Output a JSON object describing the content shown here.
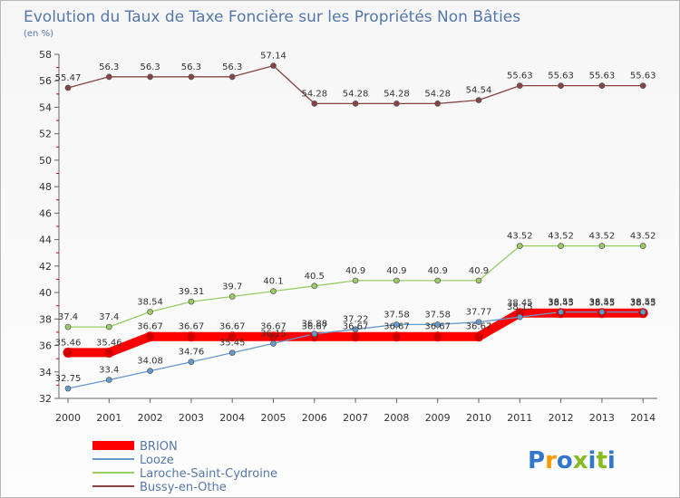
{
  "chart_data": {
    "type": "line",
    "title": "Evolution du Taux de Taxe Foncière sur les Propriétés Non Bâties",
    "subtitle": "(en %)",
    "xlabel": "",
    "ylabel": "",
    "ylim": [
      32,
      58
    ],
    "yticks": [
      "32",
      "34",
      "36",
      "38",
      "40",
      "42",
      "44",
      "46",
      "48",
      "50",
      "52",
      "54",
      "56",
      "58"
    ],
    "categories": [
      "2000",
      "2001",
      "2002",
      "2003",
      "2004",
      "2005",
      "2006",
      "2007",
      "2008",
      "2009",
      "2010",
      "2011",
      "2012",
      "2013",
      "2014"
    ],
    "grid": false,
    "legend_position": "bottom-left",
    "series": [
      {
        "name": "BRION",
        "color": "#ff0000",
        "values": [
          35.46,
          35.46,
          36.67,
          36.67,
          36.67,
          36.67,
          36.67,
          36.67,
          36.67,
          36.67,
          36.67,
          38.45,
          38.45,
          38.45,
          38.45
        ],
        "labels": [
          "35.46",
          "35.46",
          "36.67",
          "36.67",
          "36.67",
          "36.67",
          "36.67",
          "36.67",
          "36.67",
          "36.67",
          "36.67",
          "38.45",
          "38.45",
          "38.45",
          "38.45"
        ]
      },
      {
        "name": "Looze",
        "color": "#6699cc",
        "values": [
          32.75,
          33.4,
          34.08,
          34.76,
          35.45,
          36.15,
          36.88,
          37.22,
          37.58,
          37.58,
          37.77,
          38.15,
          38.53,
          38.53,
          38.53
        ],
        "labels": [
          "32.75",
          "33.4",
          "34.08",
          "34.76",
          "35.45",
          "36.15",
          "36.88",
          "37.22",
          "37.58",
          "37.58",
          "37.77",
          "38.15",
          "38.53",
          "38.53",
          "38.53"
        ]
      },
      {
        "name": "Laroche-Saint-Cydroine",
        "color": "#99cc66",
        "values": [
          37.4,
          37.4,
          38.54,
          39.31,
          39.7,
          40.1,
          40.5,
          40.9,
          40.9,
          40.9,
          40.9,
          43.52,
          43.52,
          43.52,
          43.52
        ],
        "labels": [
          "37.4",
          "37.4",
          "38.54",
          "39.31",
          "39.7",
          "40.1",
          "40.5",
          "40.9",
          "40.9",
          "40.9",
          "40.9",
          "43.52",
          "43.52",
          "43.52",
          "43.52"
        ]
      },
      {
        "name": "Bussy-en-Othe",
        "color": "#884444",
        "values": [
          55.47,
          56.3,
          56.3,
          56.3,
          56.3,
          57.14,
          54.28,
          54.28,
          54.28,
          54.28,
          54.54,
          55.63,
          55.63,
          55.63,
          55.63
        ],
        "labels": [
          "55.47",
          "56.3",
          "56.3",
          "56.3",
          "56.3",
          "57.14",
          "54.28",
          "54.28",
          "54.28",
          "54.28",
          "54.54",
          "55.63",
          "55.63",
          "55.63",
          "55.63"
        ]
      }
    ]
  },
  "branding": {
    "logo_text": "Proxiti"
  }
}
